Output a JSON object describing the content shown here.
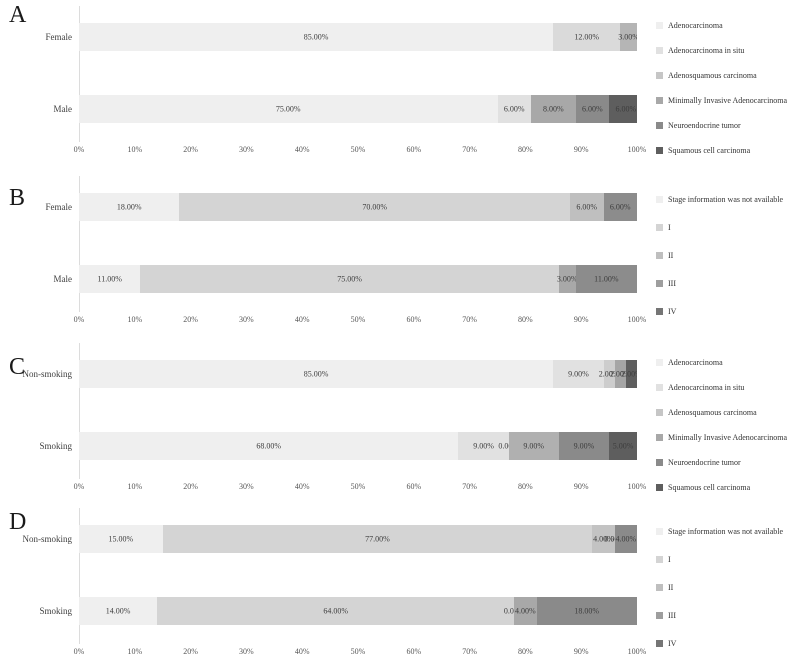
{
  "figure_title": "",
  "background_color": "#ffffff",
  "text_color": "#3d3d3d",
  "chart_data": [
    {
      "panel": "A",
      "type": "bar",
      "orientation": "horizontal",
      "stacked": true,
      "grid": false,
      "legend_position": "right",
      "xlim": [
        0,
        100
      ],
      "x_ticks": [
        "0%",
        "10%",
        "20%",
        "30%",
        "40%",
        "50%",
        "60%",
        "70%",
        "80%",
        "90%",
        "100%"
      ],
      "categories": [
        "Female",
        "Male"
      ],
      "bars": [
        {
          "group": "Female",
          "segments": [
            {
              "category": "Adenocarcinoma",
              "value": 85,
              "label": "85.00%",
              "color": "#efefef"
            },
            {
              "category": "Adenocarcinoma in situ",
              "value": 12,
              "label": "12.00%",
              "color": "#dadada"
            },
            {
              "category": "Adenosquamous carcinoma",
              "value": 3,
              "label": "3.00%",
              "color": "#b5b5b5"
            }
          ]
        },
        {
          "group": "Male",
          "segments": [
            {
              "category": "Adenocarcinoma",
              "value": 75,
              "label": "75.00%",
              "color": "#efefef"
            },
            {
              "category": "Adenocarcinoma in situ",
              "value": 6,
              "label": "6.00%",
              "color": "#e1e1e1"
            },
            {
              "category": "Minimally Invasive Adenocarcinoma",
              "value": 8,
              "label": "8.00%",
              "color": "#a8a8a8"
            },
            {
              "category": "Neuroendocrine tumor",
              "value": 6,
              "label": "6.00%",
              "color": "#8a8a8a"
            },
            {
              "category": "Squamous cell carcinoma",
              "value": 6,
              "label": "6.00%",
              "color": "#5e5e5e"
            }
          ]
        }
      ],
      "legend": [
        {
          "label": "Adenocarcinoma",
          "color": "#efefef"
        },
        {
          "label": "Adenocarcinoma in situ",
          "color": "#e1e1e1"
        },
        {
          "label": "Adenosquamous carcinoma",
          "color": "#c6c6c6"
        },
        {
          "label": "Minimally Invasive Adenocarcinoma",
          "color": "#a8a8a8"
        },
        {
          "label": "Neuroendocrine tumor",
          "color": "#8a8a8a"
        },
        {
          "label": "Squamous cell carcinoma",
          "color": "#5e5e5e"
        }
      ]
    },
    {
      "panel": "B",
      "type": "bar",
      "orientation": "horizontal",
      "stacked": true,
      "grid": false,
      "legend_position": "right",
      "xlim": [
        0,
        100
      ],
      "x_ticks": [
        "0%",
        "10%",
        "20%",
        "30%",
        "40%",
        "50%",
        "60%",
        "70%",
        "80%",
        "90%",
        "100%"
      ],
      "categories": [
        "Female",
        "Male"
      ],
      "bars": [
        {
          "group": "Female",
          "segments": [
            {
              "category": "Stage information was not available",
              "value": 18,
              "label": "18.00%",
              "color": "#efefef"
            },
            {
              "category": "I",
              "value": 70,
              "label": "70.00%",
              "color": "#d4d4d4"
            },
            {
              "category": "II",
              "value": 6,
              "label": "6.00%",
              "color": "#bfbfbf"
            },
            {
              "category": "IV",
              "value": 6,
              "label": "6.00%",
              "color": "#8c8c8c"
            }
          ]
        },
        {
          "group": "Male",
          "segments": [
            {
              "category": "Stage information was not available",
              "value": 11,
              "label": "11.00%",
              "color": "#efefef"
            },
            {
              "category": "I",
              "value": 75,
              "label": "75.00%",
              "color": "#d4d4d4"
            },
            {
              "category": "III",
              "value": 3,
              "label": "3.00%",
              "color": "#a8a8a8"
            },
            {
              "category": "IV",
              "value": 11,
              "label": "11.00%",
              "color": "#8c8c8c"
            }
          ]
        }
      ],
      "legend": [
        {
          "label": "Stage information was not available",
          "color": "#efefef"
        },
        {
          "label": "I",
          "color": "#d4d4d4"
        },
        {
          "label": "II",
          "color": "#bfbfbf"
        },
        {
          "label": "III",
          "color": "#9e9e9e"
        },
        {
          "label": "IV",
          "color": "#757575"
        }
      ]
    },
    {
      "panel": "C",
      "type": "bar",
      "orientation": "horizontal",
      "stacked": true,
      "grid": false,
      "legend_position": "right",
      "xlim": [
        0,
        100
      ],
      "x_ticks": [
        "0%",
        "10%",
        "20%",
        "30%",
        "40%",
        "50%",
        "60%",
        "70%",
        "80%",
        "90%",
        "100%"
      ],
      "categories": [
        "Non-smoking",
        "Smoking"
      ],
      "bars": [
        {
          "group": "Non-smoking",
          "segments": [
            {
              "category": "Adenocarcinoma",
              "value": 85,
              "label": "85.00%",
              "color": "#efefef"
            },
            {
              "category": "Adenocarcinoma in situ",
              "value": 9,
              "label": "9.00%",
              "color": "#e1e1e1"
            },
            {
              "category": "Adenosquamous carcinoma",
              "value": 2,
              "label": "2.00%",
              "color": "#cdcdcd"
            },
            {
              "category": "Minimally Invasive Adenocarcinoma",
              "value": 2,
              "label": "2.00%",
              "color": "#a5a5a5"
            },
            {
              "category": "Squamous cell carcinoma",
              "value": 2,
              "label": "2.00%",
              "color": "#5e5e5e"
            }
          ]
        },
        {
          "group": "Smoking",
          "segments": [
            {
              "category": "Adenocarcinoma",
              "value": 68,
              "label": "68.00%",
              "color": "#efefef"
            },
            {
              "category": "Adenocarcinoma in situ",
              "value": 9,
              "label": "9.00%",
              "color": "#e1e1e1"
            },
            {
              "category": "Adenosquamous carcinoma",
              "value": 0,
              "label": "0.00%",
              "color": "#c6c6c6"
            },
            {
              "category": "Minimally Invasive Adenocarcinoma",
              "value": 9,
              "label": "9.00%",
              "color": "#b0b0b0"
            },
            {
              "category": "Neuroendocrine tumor",
              "value": 9,
              "label": "9.00%",
              "color": "#8a8a8a"
            },
            {
              "category": "Squamous cell carcinoma",
              "value": 5,
              "label": "5.00%",
              "color": "#5e5e5e"
            }
          ]
        }
      ],
      "legend": [
        {
          "label": "Adenocarcinoma",
          "color": "#efefef"
        },
        {
          "label": "Adenocarcinoma in situ",
          "color": "#e1e1e1"
        },
        {
          "label": "Adenosquamous carcinoma",
          "color": "#c6c6c6"
        },
        {
          "label": "Minimally Invasive Adenocarcinoma",
          "color": "#a8a8a8"
        },
        {
          "label": "Neuroendocrine tumor",
          "color": "#8a8a8a"
        },
        {
          "label": "Squamous cell carcinoma",
          "color": "#5e5e5e"
        }
      ]
    },
    {
      "panel": "D",
      "type": "bar",
      "orientation": "horizontal",
      "stacked": true,
      "grid": false,
      "legend_position": "right",
      "xlim": [
        0,
        100
      ],
      "x_ticks": [
        "0%",
        "10%",
        "20%",
        "30%",
        "40%",
        "50%",
        "60%",
        "70%",
        "80%",
        "90%",
        "100%"
      ],
      "categories": [
        "Non-smoking",
        "Smoking"
      ],
      "bars": [
        {
          "group": "Non-smoking",
          "segments": [
            {
              "category": "Stage information was not available",
              "value": 15,
              "label": "15.00%",
              "color": "#efefef"
            },
            {
              "category": "I",
              "value": 77,
              "label": "77.00%",
              "color": "#d4d4d4"
            },
            {
              "category": "II",
              "value": 4,
              "label": "4.00%",
              "color": "#c3c3c3"
            },
            {
              "category": "III",
              "value": 0,
              "label": "0.00%",
              "color": "#a8a8a8"
            },
            {
              "category": "IV",
              "value": 4,
              "label": "4.00%",
              "color": "#8a8a8a"
            }
          ]
        },
        {
          "group": "Smoking",
          "segments": [
            {
              "category": "Stage information was not available",
              "value": 14,
              "label": "14.00%",
              "color": "#efefef"
            },
            {
              "category": "I",
              "value": 64,
              "label": "64.00%",
              "color": "#d4d4d4"
            },
            {
              "category": "II",
              "value": 0,
              "label": "0.00%",
              "color": "#bfbfbf"
            },
            {
              "category": "III",
              "value": 4,
              "label": "4.00%",
              "color": "#a8a8a8"
            },
            {
              "category": "IV",
              "value": 18,
              "label": "18.00%",
              "color": "#8a8a8a"
            }
          ]
        }
      ],
      "legend": [
        {
          "label": "Stage information was not available",
          "color": "#efefef"
        },
        {
          "label": "I",
          "color": "#d4d4d4"
        },
        {
          "label": "II",
          "color": "#bfbfbf"
        },
        {
          "label": "III",
          "color": "#9e9e9e"
        },
        {
          "label": "IV",
          "color": "#757575"
        }
      ]
    }
  ]
}
